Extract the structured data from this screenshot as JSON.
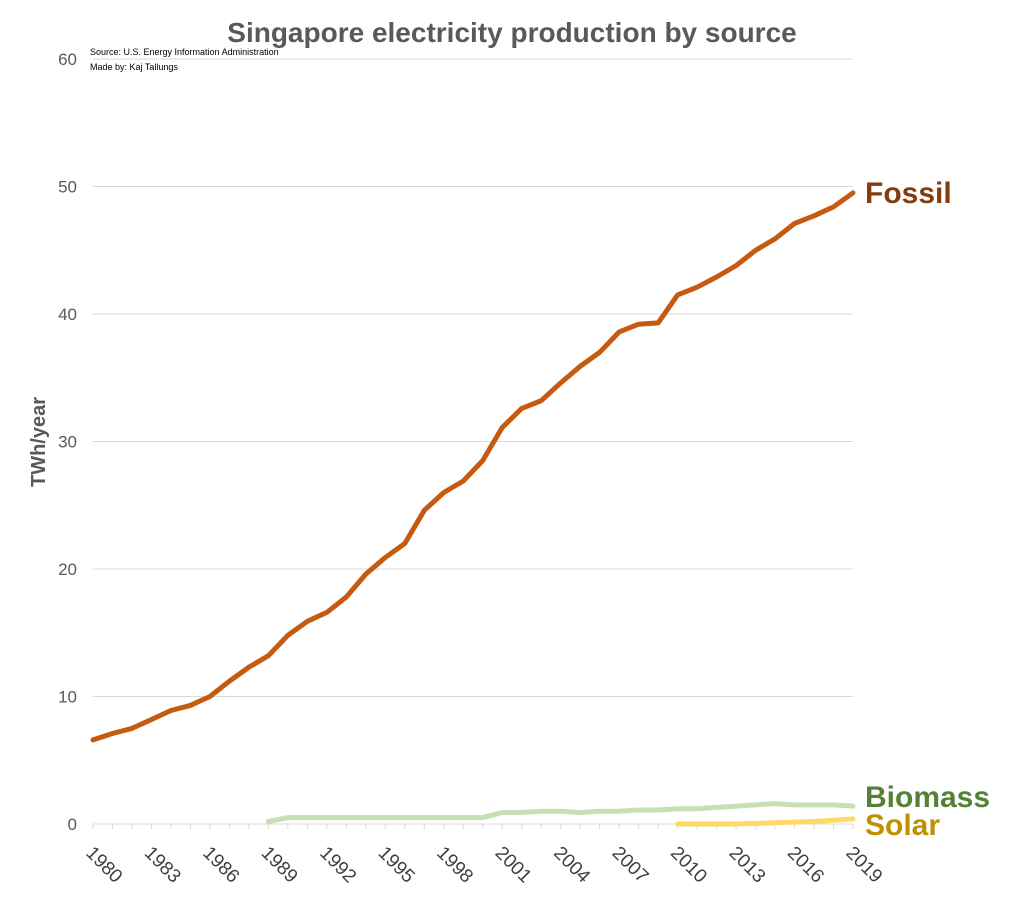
{
  "chart_data": {
    "type": "line",
    "title": "Singapore electricity production by source",
    "notes": [
      "Source: U.S. Energy Information Administration",
      "Made by: Kaj Tallungs"
    ],
    "xlabel": "",
    "ylabel": "TWh/year",
    "ylim": [
      0,
      60
    ],
    "yticks": [
      0,
      10,
      20,
      30,
      40,
      50,
      60
    ],
    "xlim": [
      1980,
      2019
    ],
    "xticks": [
      1980,
      1983,
      1986,
      1989,
      1992,
      1995,
      1998,
      2001,
      2004,
      2007,
      2010,
      2013,
      2016,
      2019
    ],
    "grid": "horizontal",
    "legend": "direct labels at right end of lines",
    "series": [
      {
        "name": "Fossil",
        "line_color": "#c55a11",
        "label_color": "#843c0c",
        "x": [
          1980,
          1981,
          1982,
          1983,
          1984,
          1985,
          1986,
          1987,
          1988,
          1989,
          1990,
          1991,
          1992,
          1993,
          1994,
          1995,
          1996,
          1997,
          1998,
          1999,
          2000,
          2001,
          2002,
          2003,
          2004,
          2005,
          2006,
          2007,
          2008,
          2009,
          2010,
          2011,
          2012,
          2013,
          2014,
          2015,
          2016,
          2017,
          2018,
          2019
        ],
        "values": [
          6.6,
          7.1,
          7.5,
          8.2,
          8.9,
          9.3,
          10.0,
          11.2,
          12.3,
          13.2,
          14.8,
          15.9,
          16.6,
          17.8,
          19.6,
          20.9,
          22.0,
          24.6,
          26.0,
          26.9,
          28.5,
          31.1,
          32.6,
          33.2,
          34.6,
          35.9,
          37.0,
          38.6,
          39.2,
          39.3,
          41.5,
          42.1,
          42.9,
          43.8,
          45.0,
          45.9,
          47.1,
          47.7,
          48.4,
          49.5
        ]
      },
      {
        "name": "Biomass",
        "line_color": "#c5e0b4",
        "label_color": "#548235",
        "x": [
          1989,
          1990,
          1991,
          1992,
          1993,
          1994,
          1995,
          1996,
          1997,
          1998,
          1999,
          2000,
          2001,
          2002,
          2003,
          2004,
          2005,
          2006,
          2007,
          2008,
          2009,
          2010,
          2011,
          2012,
          2013,
          2014,
          2015,
          2016,
          2017,
          2018,
          2019
        ],
        "values": [
          0.2,
          0.5,
          0.5,
          0.5,
          0.5,
          0.5,
          0.5,
          0.5,
          0.5,
          0.5,
          0.5,
          0.5,
          0.9,
          0.9,
          1.0,
          1.0,
          0.9,
          1.0,
          1.0,
          1.1,
          1.1,
          1.2,
          1.2,
          1.3,
          1.4,
          1.5,
          1.6,
          1.5,
          1.5,
          1.5,
          1.4
        ]
      },
      {
        "name": "Solar",
        "line_color": "#ffd966",
        "label_color": "#bf9000",
        "x": [
          2010,
          2011,
          2012,
          2013,
          2014,
          2015,
          2016,
          2017,
          2018,
          2019
        ],
        "values": [
          0.0,
          0.0,
          0.0,
          0.0,
          0.05,
          0.1,
          0.15,
          0.2,
          0.3,
          0.4
        ]
      }
    ]
  }
}
